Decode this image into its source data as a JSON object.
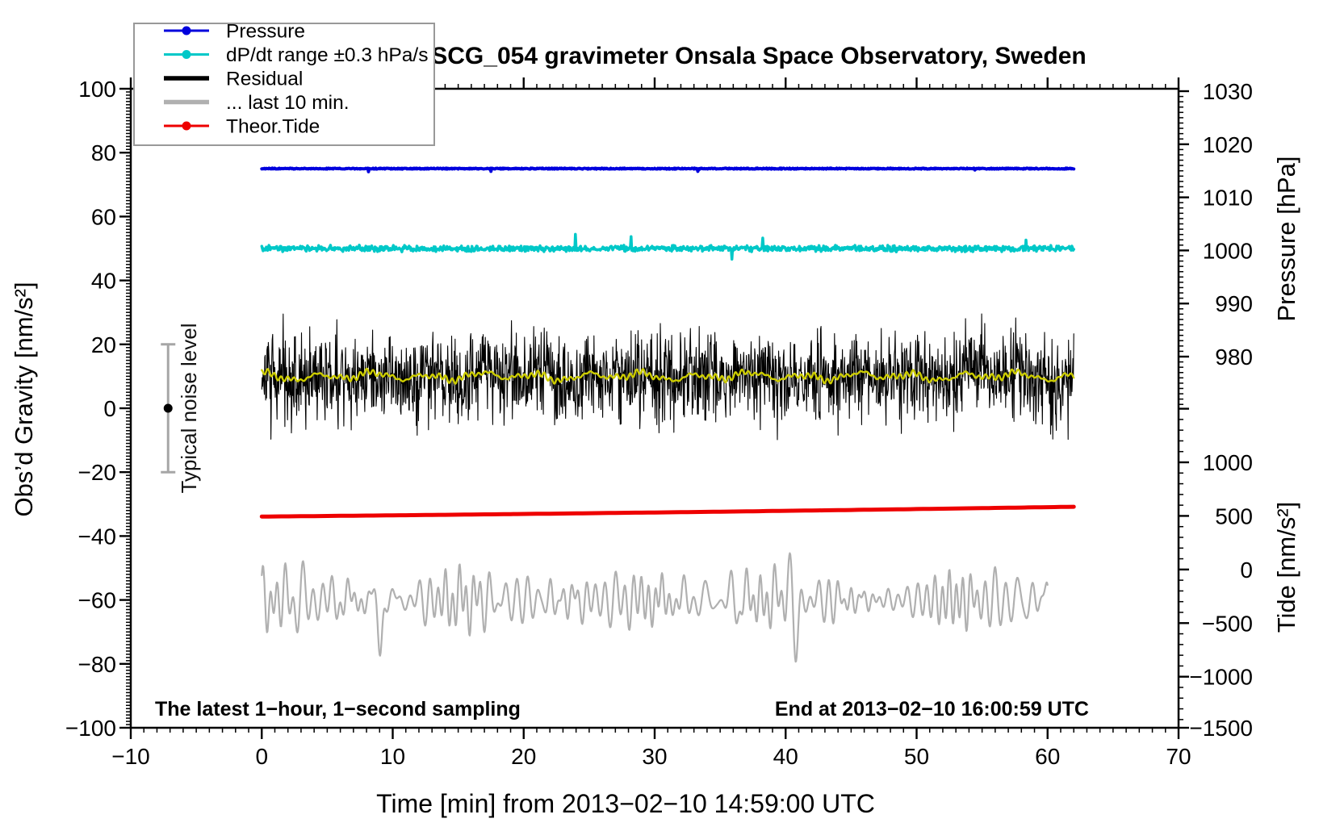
{
  "chart_data": {
    "type": "line",
    "title": "SCG_054 gravimeter Onsala Space Observatory, Sweden",
    "xlabel": "Time [min] from 2013−02−10 14:59:00 UTC",
    "annotations": {
      "bottom_left": "The latest 1−hour, 1−second sampling",
      "bottom_right": "End at 2013−02−10 16:00:59 UTC",
      "noise_bar_label": "Typical noise level"
    },
    "axes": {
      "x": {
        "label": "Time [min] from 2013−02−10 14:59:00 UTC",
        "range": [
          -10,
          70
        ],
        "major_ticks": [
          -10,
          0,
          10,
          20,
          30,
          40,
          50,
          60,
          70
        ],
        "minor_step": 1,
        "units": "min"
      },
      "left_gravity": {
        "label": "Obs’d Gravity [nm/s²]",
        "range": [
          -100,
          100
        ],
        "major_ticks": [
          100,
          80,
          60,
          40,
          20,
          0,
          -20,
          -40,
          -60,
          -80,
          -100
        ],
        "minor_step": 1
      },
      "right_pressure": {
        "label": "Pressure [hPa]",
        "major_ticks": [
          1030,
          1020,
          1010,
          1000,
          990,
          980
        ],
        "minor_step": 1,
        "minor_range": [
          971,
          1030
        ]
      },
      "right_tide": {
        "label": "Tide [nm/s²]",
        "major_ticks": [
          1000,
          500,
          0,
          -500,
          -1000,
          -1500
        ],
        "minor_step": 100,
        "minor_range": [
          -1500,
          1500
        ]
      }
    },
    "legend": {
      "items": [
        {
          "label": "Pressure",
          "color": "#0000dd",
          "marker": "dot"
        },
        {
          "label": "dP/dt range ±0.3 hPa/s",
          "color": "#00c8c8",
          "marker": "dot"
        },
        {
          "label": "Residual",
          "color": "#000000",
          "marker": "line"
        },
        {
          "label": "... last 10 min.",
          "color": "#b0b0b0",
          "marker": "line"
        },
        {
          "label": "Theor.Tide",
          "color": "#ee0000",
          "marker": "dot"
        }
      ]
    },
    "noise_bar": {
      "x_min": -7.15,
      "center_gravity": 0,
      "span_gravity": [
        -20,
        20
      ],
      "bar_color": "#a6a6a6",
      "dot_color": "#000000"
    },
    "series": [
      {
        "name": "Pressure",
        "color": "#0000dd",
        "plotted_on": "gravity_axis",
        "baseline_gravity": 75,
        "approx_value_hpa": 1015,
        "x_span_min": [
          0,
          62
        ],
        "stroke_width": 4,
        "noise_amp": 0.15
      },
      {
        "name": "dP/dt range ±0.3 hPa/s",
        "color": "#00c8c8",
        "plotted_on": "gravity_axis",
        "baseline_gravity": 50,
        "centered_at_hpa_line": 1000,
        "x_span_min": [
          0,
          62
        ],
        "stroke_width": 3.5,
        "noise_amp": 1.1
      },
      {
        "name": "Residual",
        "color": "#000000",
        "baseline_gravity": 10,
        "x_span_min": [
          0,
          62
        ],
        "stroke_width": 1.1,
        "noise_sigma": 6.5,
        "typical_range": [
          -7,
          27
        ],
        "extremes": [
          -16,
          35
        ]
      },
      {
        "name": "Residual smoothed",
        "color": "#cdcd00",
        "baseline_gravity": 10,
        "x_span_min": [
          0,
          62
        ],
        "stroke_width": 2.4,
        "wiggle_amp": 1.8
      },
      {
        "name": "Theor.Tide",
        "color": "#ee0000",
        "x_span_min": [
          0,
          62
        ],
        "start_gravity": -33.9,
        "end_gravity": -30.8,
        "tide_axis_values": [
          500,
          545
        ],
        "stroke_width": 5
      },
      {
        "name": "... last 10 min.",
        "color": "#b0b0b0",
        "baseline_gravity": -60,
        "x_span_min": [
          0,
          60
        ],
        "stroke_width": 2.2,
        "osc_amp_range": [
          4,
          14
        ],
        "extremes_gravity": [
          -88,
          -43
        ]
      }
    ]
  }
}
